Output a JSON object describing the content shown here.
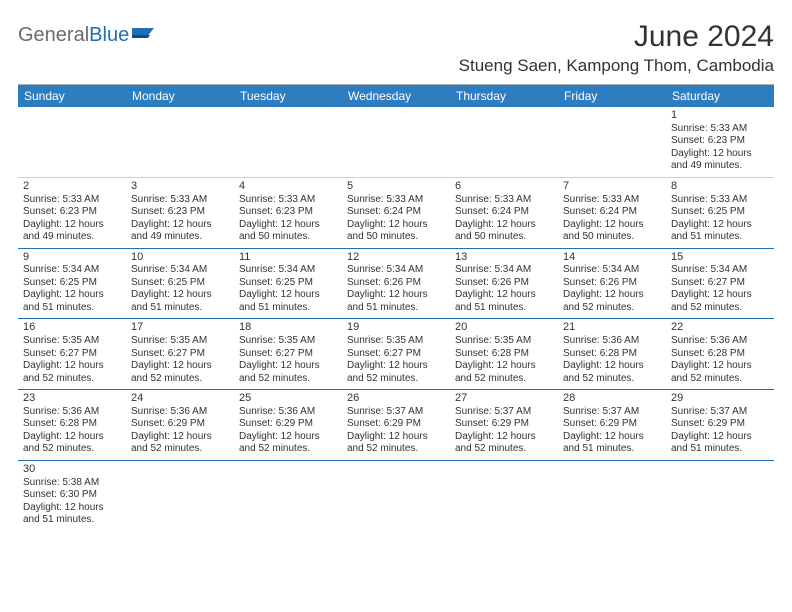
{
  "logo": {
    "text_1": "General",
    "text_2": "Blue",
    "mark_color": "#1f6fb2",
    "gray_color": "#6b6b6b"
  },
  "title": "June 2024",
  "location": "Stueng Saen, Kampong Thom, Cambodia",
  "colors": {
    "header_bg": "#2f7dc1",
    "header_fg": "#ffffff",
    "day_border": "#1f6fb2",
    "first_row_border": "#cfcfcf",
    "text": "#333333",
    "rule": "#b0b0b0"
  },
  "daynames": [
    "Sunday",
    "Monday",
    "Tuesday",
    "Wednesday",
    "Thursday",
    "Friday",
    "Saturday"
  ],
  "weeks": [
    [
      null,
      null,
      null,
      null,
      null,
      null,
      {
        "n": "1",
        "sr": "Sunrise: 5:33 AM",
        "ss": "Sunset: 6:23 PM",
        "d1": "Daylight: 12 hours",
        "d2": "and 49 minutes."
      }
    ],
    [
      {
        "n": "2",
        "sr": "Sunrise: 5:33 AM",
        "ss": "Sunset: 6:23 PM",
        "d1": "Daylight: 12 hours",
        "d2": "and 49 minutes."
      },
      {
        "n": "3",
        "sr": "Sunrise: 5:33 AM",
        "ss": "Sunset: 6:23 PM",
        "d1": "Daylight: 12 hours",
        "d2": "and 49 minutes."
      },
      {
        "n": "4",
        "sr": "Sunrise: 5:33 AM",
        "ss": "Sunset: 6:23 PM",
        "d1": "Daylight: 12 hours",
        "d2": "and 50 minutes."
      },
      {
        "n": "5",
        "sr": "Sunrise: 5:33 AM",
        "ss": "Sunset: 6:24 PM",
        "d1": "Daylight: 12 hours",
        "d2": "and 50 minutes."
      },
      {
        "n": "6",
        "sr": "Sunrise: 5:33 AM",
        "ss": "Sunset: 6:24 PM",
        "d1": "Daylight: 12 hours",
        "d2": "and 50 minutes."
      },
      {
        "n": "7",
        "sr": "Sunrise: 5:33 AM",
        "ss": "Sunset: 6:24 PM",
        "d1": "Daylight: 12 hours",
        "d2": "and 50 minutes."
      },
      {
        "n": "8",
        "sr": "Sunrise: 5:33 AM",
        "ss": "Sunset: 6:25 PM",
        "d1": "Daylight: 12 hours",
        "d2": "and 51 minutes."
      }
    ],
    [
      {
        "n": "9",
        "sr": "Sunrise: 5:34 AM",
        "ss": "Sunset: 6:25 PM",
        "d1": "Daylight: 12 hours",
        "d2": "and 51 minutes."
      },
      {
        "n": "10",
        "sr": "Sunrise: 5:34 AM",
        "ss": "Sunset: 6:25 PM",
        "d1": "Daylight: 12 hours",
        "d2": "and 51 minutes."
      },
      {
        "n": "11",
        "sr": "Sunrise: 5:34 AM",
        "ss": "Sunset: 6:25 PM",
        "d1": "Daylight: 12 hours",
        "d2": "and 51 minutes."
      },
      {
        "n": "12",
        "sr": "Sunrise: 5:34 AM",
        "ss": "Sunset: 6:26 PM",
        "d1": "Daylight: 12 hours",
        "d2": "and 51 minutes."
      },
      {
        "n": "13",
        "sr": "Sunrise: 5:34 AM",
        "ss": "Sunset: 6:26 PM",
        "d1": "Daylight: 12 hours",
        "d2": "and 51 minutes."
      },
      {
        "n": "14",
        "sr": "Sunrise: 5:34 AM",
        "ss": "Sunset: 6:26 PM",
        "d1": "Daylight: 12 hours",
        "d2": "and 52 minutes."
      },
      {
        "n": "15",
        "sr": "Sunrise: 5:34 AM",
        "ss": "Sunset: 6:27 PM",
        "d1": "Daylight: 12 hours",
        "d2": "and 52 minutes."
      }
    ],
    [
      {
        "n": "16",
        "sr": "Sunrise: 5:35 AM",
        "ss": "Sunset: 6:27 PM",
        "d1": "Daylight: 12 hours",
        "d2": "and 52 minutes."
      },
      {
        "n": "17",
        "sr": "Sunrise: 5:35 AM",
        "ss": "Sunset: 6:27 PM",
        "d1": "Daylight: 12 hours",
        "d2": "and 52 minutes."
      },
      {
        "n": "18",
        "sr": "Sunrise: 5:35 AM",
        "ss": "Sunset: 6:27 PM",
        "d1": "Daylight: 12 hours",
        "d2": "and 52 minutes."
      },
      {
        "n": "19",
        "sr": "Sunrise: 5:35 AM",
        "ss": "Sunset: 6:27 PM",
        "d1": "Daylight: 12 hours",
        "d2": "and 52 minutes."
      },
      {
        "n": "20",
        "sr": "Sunrise: 5:35 AM",
        "ss": "Sunset: 6:28 PM",
        "d1": "Daylight: 12 hours",
        "d2": "and 52 minutes."
      },
      {
        "n": "21",
        "sr": "Sunrise: 5:36 AM",
        "ss": "Sunset: 6:28 PM",
        "d1": "Daylight: 12 hours",
        "d2": "and 52 minutes."
      },
      {
        "n": "22",
        "sr": "Sunrise: 5:36 AM",
        "ss": "Sunset: 6:28 PM",
        "d1": "Daylight: 12 hours",
        "d2": "and 52 minutes."
      }
    ],
    [
      {
        "n": "23",
        "sr": "Sunrise: 5:36 AM",
        "ss": "Sunset: 6:28 PM",
        "d1": "Daylight: 12 hours",
        "d2": "and 52 minutes."
      },
      {
        "n": "24",
        "sr": "Sunrise: 5:36 AM",
        "ss": "Sunset: 6:29 PM",
        "d1": "Daylight: 12 hours",
        "d2": "and 52 minutes."
      },
      {
        "n": "25",
        "sr": "Sunrise: 5:36 AM",
        "ss": "Sunset: 6:29 PM",
        "d1": "Daylight: 12 hours",
        "d2": "and 52 minutes."
      },
      {
        "n": "26",
        "sr": "Sunrise: 5:37 AM",
        "ss": "Sunset: 6:29 PM",
        "d1": "Daylight: 12 hours",
        "d2": "and 52 minutes."
      },
      {
        "n": "27",
        "sr": "Sunrise: 5:37 AM",
        "ss": "Sunset: 6:29 PM",
        "d1": "Daylight: 12 hours",
        "d2": "and 52 minutes."
      },
      {
        "n": "28",
        "sr": "Sunrise: 5:37 AM",
        "ss": "Sunset: 6:29 PM",
        "d1": "Daylight: 12 hours",
        "d2": "and 51 minutes."
      },
      {
        "n": "29",
        "sr": "Sunrise: 5:37 AM",
        "ss": "Sunset: 6:29 PM",
        "d1": "Daylight: 12 hours",
        "d2": "and 51 minutes."
      }
    ],
    [
      {
        "n": "30",
        "sr": "Sunrise: 5:38 AM",
        "ss": "Sunset: 6:30 PM",
        "d1": "Daylight: 12 hours",
        "d2": "and 51 minutes."
      },
      null,
      null,
      null,
      null,
      null,
      null
    ]
  ]
}
